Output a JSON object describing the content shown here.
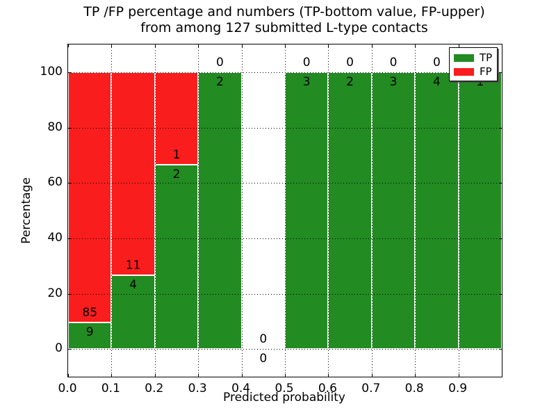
{
  "figure": {
    "title_line1": "TP /FP percentage and numbers (TP-bottom value, FP-upper)",
    "title_line2": "from among 127 submitted L-type contacts",
    "xlabel": "Predicted probability",
    "ylabel": "Percentage"
  },
  "legend": {
    "items": [
      {
        "label": "TP",
        "color": "#228B22"
      },
      {
        "label": "FP",
        "color": "#FA1D1D"
      }
    ]
  },
  "chart_data": {
    "type": "bar",
    "stacked": true,
    "normalized": "each bin scaled to 100%",
    "title": "TP /FP percentage and numbers (TP-bottom value, FP-upper) from among 127 submitted L-type contacts",
    "xlabel": "Predicted probability",
    "ylabel": "Percentage",
    "xlim": [
      0.0,
      1.0
    ],
    "ylim": [
      -10,
      110
    ],
    "grid": true,
    "grid_style": "dotted black, drawn above bars",
    "legend_position": "upper right",
    "total_contacts": 127,
    "x_ticks": [
      "0.0",
      "0.1",
      "0.2",
      "0.3",
      "0.4",
      "0.5",
      "0.6",
      "0.7",
      "0.8",
      "0.9"
    ],
    "y_ticks": [
      0,
      20,
      40,
      60,
      80,
      100
    ],
    "colors": {
      "tp": "#228B22",
      "fp": "#FA1D1D",
      "bar_edge": "#ffffff"
    },
    "series": [
      {
        "name": "TP",
        "values": [
          9,
          4,
          2,
          2,
          0,
          3,
          2,
          3,
          4,
          1
        ]
      },
      {
        "name": "FP",
        "values": [
          85,
          11,
          1,
          0,
          0,
          0,
          0,
          0,
          0,
          0
        ]
      }
    ],
    "bins": [
      {
        "range": [
          0.0,
          0.1
        ],
        "tp": 9,
        "fp": 85
      },
      {
        "range": [
          0.1,
          0.2
        ],
        "tp": 4,
        "fp": 11
      },
      {
        "range": [
          0.2,
          0.3
        ],
        "tp": 2,
        "fp": 1
      },
      {
        "range": [
          0.3,
          0.4
        ],
        "tp": 2,
        "fp": 0
      },
      {
        "range": [
          0.4,
          0.5
        ],
        "tp": 0,
        "fp": 0
      },
      {
        "range": [
          0.5,
          0.6
        ],
        "tp": 3,
        "fp": 0
      },
      {
        "range": [
          0.6,
          0.7
        ],
        "tp": 2,
        "fp": 0
      },
      {
        "range": [
          0.7,
          0.8
        ],
        "tp": 3,
        "fp": 0
      },
      {
        "range": [
          0.8,
          0.9
        ],
        "tp": 4,
        "fp": 0
      },
      {
        "range": [
          0.9,
          1.0
        ],
        "tp": 1,
        "fp": 0
      }
    ]
  }
}
